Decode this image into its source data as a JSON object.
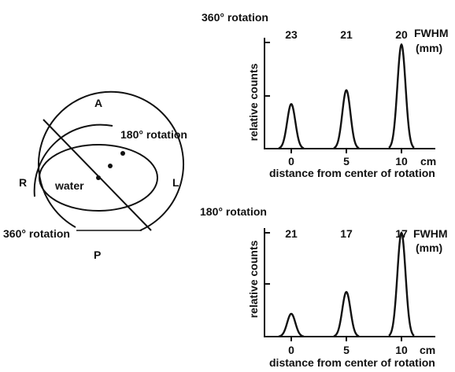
{
  "colors": {
    "ink": "#111111",
    "background": "#ffffff"
  },
  "diagram": {
    "orientation_labels": {
      "A": "A",
      "P": "P",
      "R": "R",
      "L": "L"
    },
    "water_label": "water",
    "arc_labels": {
      "rot180": "180° rotation",
      "rot360": "360° rotation"
    }
  },
  "chart_data": [
    {
      "type": "line",
      "title": "360° rotation",
      "xlabel": "distance from center of rotation",
      "ylabel": "relative counts",
      "x_unit": "cm",
      "x_ticks": [
        0,
        5,
        10
      ],
      "x_tick_labels": [
        "0",
        "5",
        "10"
      ],
      "ylim": [
        0,
        1
      ],
      "y_ticks": [
        0.5,
        1
      ],
      "grid": false,
      "peaks": [
        {
          "x": 0,
          "height": 0.42,
          "fwhm_mm": 23
        },
        {
          "x": 5,
          "height": 0.55,
          "fwhm_mm": 21
        },
        {
          "x": 10,
          "height": 0.98,
          "fwhm_mm": 20
        }
      ],
      "fwhm_labels": [
        "23",
        "21",
        "20"
      ],
      "fwhm_title": "FWHM",
      "fwhm_unit": "(mm)"
    },
    {
      "type": "line",
      "title": "180° rotation",
      "xlabel": "distance from center of rotation",
      "ylabel": "relative counts",
      "x_unit": "cm",
      "x_ticks": [
        0,
        5,
        10
      ],
      "x_tick_labels": [
        "0",
        "5",
        "10"
      ],
      "ylim": [
        0,
        1
      ],
      "y_ticks": [
        0.5,
        1
      ],
      "grid": false,
      "peaks": [
        {
          "x": 0,
          "height": 0.22,
          "fwhm_mm": 21
        },
        {
          "x": 5,
          "height": 0.43,
          "fwhm_mm": 17
        },
        {
          "x": 10,
          "height": 1.0,
          "fwhm_mm": 17
        }
      ],
      "fwhm_labels": [
        "21",
        "17",
        "17"
      ],
      "fwhm_title": "FWHM",
      "fwhm_unit": "(mm)"
    }
  ]
}
